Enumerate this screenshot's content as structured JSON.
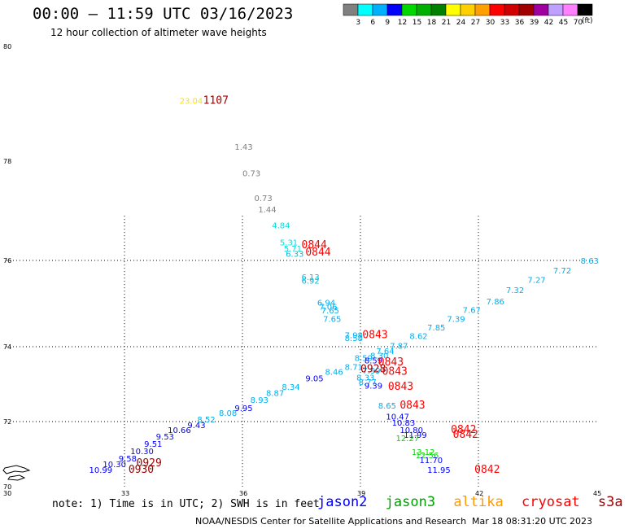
{
  "title": "00:00 – 11:59 UTC 03/16/2023",
  "subtitle": "12 hour collection of altimeter wave heights",
  "legend": {
    "colors": [
      "#808080",
      "#00ffff",
      "#00b0ff",
      "#0000ff",
      "#00d800",
      "#00b000",
      "#008000",
      "#ffff00",
      "#ffd000",
      "#ffa000",
      "#ff0000",
      "#d00000",
      "#a00000",
      "#a000a0",
      "#c0a0ff",
      "#ff80ff",
      "#000000"
    ],
    "labels": [
      "3",
      "6",
      "9",
      "12",
      "15",
      "18",
      "21",
      "24",
      "27",
      "30",
      "33",
      "36",
      "39",
      "42",
      "45",
      "70"
    ],
    "units": "(ft)"
  },
  "axes": {
    "lat_labels": [
      "80",
      "78",
      "76",
      "74",
      "72",
      "70"
    ],
    "lon_labels": [
      "30",
      "33",
      "36",
      "39",
      "42",
      "45"
    ]
  },
  "measurements": [
    {
      "text": "23.04",
      "color": "#ffe000",
      "lon": 34.4,
      "lat": 79.0
    },
    {
      "text": "1.43",
      "color": "#808080",
      "lon": 35.8,
      "lat": 78.2
    },
    {
      "text": "0.73",
      "color": "#808080",
      "lon": 36.0,
      "lat": 77.7
    },
    {
      "text": "0.73",
      "color": "#808080",
      "lon": 36.3,
      "lat": 77.2
    },
    {
      "text": "1.44",
      "color": "#808080",
      "lon": 36.4,
      "lat": 76.97
    },
    {
      "text": "4.84",
      "color": "#00e0e0",
      "lon": 36.75,
      "lat": 76.65
    },
    {
      "text": "5.31",
      "color": "#00e0e0",
      "lon": 36.95,
      "lat": 76.3
    },
    {
      "text": "5.71",
      "color": "#00e0e0",
      "lon": 37.05,
      "lat": 76.18
    },
    {
      "text": "6.33",
      "color": "#00c0e0",
      "lon": 37.1,
      "lat": 76.07
    },
    {
      "text": "6.13",
      "color": "#00c0e0",
      "lon": 37.5,
      "lat": 75.55
    },
    {
      "text": "6.92",
      "color": "#00c0e0",
      "lon": 37.5,
      "lat": 75.46
    },
    {
      "text": "6.94",
      "color": "#00b0f0",
      "lon": 37.9,
      "lat": 74.95
    },
    {
      "text": "7.06",
      "color": "#00b0f0",
      "lon": 37.95,
      "lat": 74.86
    },
    {
      "text": "7.65",
      "color": "#00b0f0",
      "lon": 38.0,
      "lat": 74.77
    },
    {
      "text": "7.65",
      "color": "#00b0f0",
      "lon": 38.05,
      "lat": 74.58
    },
    {
      "text": "7.98",
      "color": "#00b0f0",
      "lon": 38.6,
      "lat": 74.2
    },
    {
      "text": "8.58",
      "color": "#00b0f0",
      "lon": 38.6,
      "lat": 74.13
    },
    {
      "text": "7.87",
      "color": "#00b0f0",
      "lon": 39.75,
      "lat": 73.95
    },
    {
      "text": "8.62",
      "color": "#00b0f0",
      "lon": 40.25,
      "lat": 74.18
    },
    {
      "text": "7.85",
      "color": "#00b0f0",
      "lon": 40.7,
      "lat": 74.38
    },
    {
      "text": "7.39",
      "color": "#00b0f0",
      "lon": 41.2,
      "lat": 74.58
    },
    {
      "text": "7.67",
      "color": "#00b0f0",
      "lon": 41.6,
      "lat": 74.78
    },
    {
      "text": "7.86",
      "color": "#00b0f0",
      "lon": 42.2,
      "lat": 74.98
    },
    {
      "text": "7.32",
      "color": "#00b0f0",
      "lon": 42.7,
      "lat": 75.25
    },
    {
      "text": "7.27",
      "color": "#00b0f0",
      "lon": 43.25,
      "lat": 75.48
    },
    {
      "text": "7.72",
      "color": "#00b0f0",
      "lon": 43.9,
      "lat": 75.7
    },
    {
      "text": "8.63",
      "color": "#00b0f0",
      "lon": 44.6,
      "lat": 75.92
    },
    {
      "text": "7.64",
      "color": "#00b0f0",
      "lon": 39.4,
      "lat": 73.8
    },
    {
      "text": "8.30",
      "color": "#00b0f0",
      "lon": 39.25,
      "lat": 73.68
    },
    {
      "text": "8.59",
      "color": "#00b0f0",
      "lon": 38.85,
      "lat": 73.62
    },
    {
      "text": "8.59",
      "color": "#0000ff",
      "lon": 39.1,
      "lat": 73.55
    },
    {
      "text": "8.71",
      "color": "#00b0f0",
      "lon": 38.6,
      "lat": 73.38
    },
    {
      "text": "7.99",
      "color": "#00b0f0",
      "lon": 39.05,
      "lat": 73.28
    },
    {
      "text": "8.46",
      "color": "#00b0f0",
      "lon": 38.1,
      "lat": 73.25
    },
    {
      "text": "8.33",
      "color": "#00b0f0",
      "lon": 38.9,
      "lat": 73.1
    },
    {
      "text": "8.77",
      "color": "#00b0f0",
      "lon": 38.95,
      "lat": 72.98
    },
    {
      "text": "9.39",
      "color": "#0000ff",
      "lon": 39.1,
      "lat": 72.88
    },
    {
      "text": "9.05",
      "color": "#0000ff",
      "lon": 37.6,
      "lat": 73.08
    },
    {
      "text": "8.34",
      "color": "#00b0f0",
      "lon": 37.0,
      "lat": 72.85
    },
    {
      "text": "8.87",
      "color": "#00b0f0",
      "lon": 36.6,
      "lat": 72.68
    },
    {
      "text": "8.93",
      "color": "#00b0f0",
      "lon": 36.2,
      "lat": 72.5
    },
    {
      "text": "9.95",
      "color": "#0000ff",
      "lon": 35.8,
      "lat": 72.28
    },
    {
      "text": "8.08",
      "color": "#00b0f0",
      "lon": 35.4,
      "lat": 72.15
    },
    {
      "text": "8.52",
      "color": "#00b0f0",
      "lon": 34.85,
      "lat": 71.98
    },
    {
      "text": "9.43",
      "color": "#0000ff",
      "lon": 34.6,
      "lat": 71.8
    },
    {
      "text": "10.66",
      "color": "#0000ff",
      "lon": 34.1,
      "lat": 71.65
    },
    {
      "text": "9.53",
      "color": "#0000ff",
      "lon": 33.8,
      "lat": 71.45
    },
    {
      "text": "9.51",
      "color": "#0000ff",
      "lon": 33.5,
      "lat": 71.23
    },
    {
      "text": "10.30",
      "color": "#0000ff",
      "lon": 33.15,
      "lat": 71.0
    },
    {
      "text": "9.58",
      "color": "#0000ff",
      "lon": 32.85,
      "lat": 70.78
    },
    {
      "text": "10.30",
      "color": "#0000ff",
      "lon": 32.45,
      "lat": 70.6
    },
    {
      "text": "10.99",
      "color": "#0000ff",
      "lon": 32.1,
      "lat": 70.42
    },
    {
      "text": "8.65",
      "color": "#00b0f0",
      "lon": 39.45,
      "lat": 72.35
    },
    {
      "text": "10.47",
      "color": "#0000ff",
      "lon": 39.65,
      "lat": 72.05
    },
    {
      "text": "10.83",
      "color": "#0000ff",
      "lon": 39.8,
      "lat": 71.87
    },
    {
      "text": "10.80",
      "color": "#0000ff",
      "lon": 40.0,
      "lat": 71.65
    },
    {
      "text": "11.99",
      "color": "#0000ff",
      "lon": 40.1,
      "lat": 71.5
    },
    {
      "text": "12.27",
      "color": "#00d800",
      "lon": 39.9,
      "lat": 71.4
    },
    {
      "text": "13.12",
      "color": "#00d800",
      "lon": 40.3,
      "lat": 70.98
    },
    {
      "text": "12.56",
      "color": "#00d800",
      "lon": 40.4,
      "lat": 70.88
    },
    {
      "text": "11.70",
      "color": "#0000ff",
      "lon": 40.5,
      "lat": 70.72
    },
    {
      "text": "11.95",
      "color": "#0000ff",
      "lon": 40.7,
      "lat": 70.42
    }
  ],
  "times": [
    {
      "text": "1107",
      "color": "#a00000",
      "lon": 35.0,
      "lat": 79.0
    },
    {
      "text": "0844",
      "color": "#ff0000",
      "lon": 37.5,
      "lat": 76.25
    },
    {
      "text": "0844",
      "color": "#ff0000",
      "lon": 37.6,
      "lat": 76.1
    },
    {
      "text": "0843",
      "color": "#ff0000",
      "lon": 39.05,
      "lat": 74.2
    },
    {
      "text": "0843",
      "color": "#ff0000",
      "lon": 39.45,
      "lat": 73.5
    },
    {
      "text": "0928",
      "color": "#a00000",
      "lon": 39.0,
      "lat": 73.32
    },
    {
      "text": "0843",
      "color": "#ff0000",
      "lon": 39.55,
      "lat": 73.25
    },
    {
      "text": "0843",
      "color": "#ff0000",
      "lon": 39.7,
      "lat": 72.85
    },
    {
      "text": "0843",
      "color": "#ff0000",
      "lon": 40.0,
      "lat": 72.35
    },
    {
      "text": "0842",
      "color": "#ff0000",
      "lon": 41.3,
      "lat": 71.65
    },
    {
      "text": "0842",
      "color": "#ff0000",
      "lon": 41.35,
      "lat": 71.5
    },
    {
      "text": "0842",
      "color": "#ff0000",
      "lon": 41.9,
      "lat": 70.42
    },
    {
      "text": "0929",
      "color": "#a00000",
      "lon": 33.3,
      "lat": 70.62
    },
    {
      "text": "0930",
      "color": "#a00000",
      "lon": 33.1,
      "lat": 70.42
    }
  ],
  "note": "note: 1) Time is in UTC; 2) SWH is in feet",
  "satellites": [
    {
      "name": "jason2",
      "color": "#0000ff"
    },
    {
      "name": "jason3",
      "color": "#00a000"
    },
    {
      "name": "altika",
      "color": "#ff9900"
    },
    {
      "name": "cryosat",
      "color": "#ff0000"
    },
    {
      "name": "s3a",
      "color": "#a00000"
    }
  ],
  "credit": "NOAA/NESDIS Center for Satellite Applications and Research",
  "timestamp": "Mar 18 08:31:20 UTC 2023"
}
